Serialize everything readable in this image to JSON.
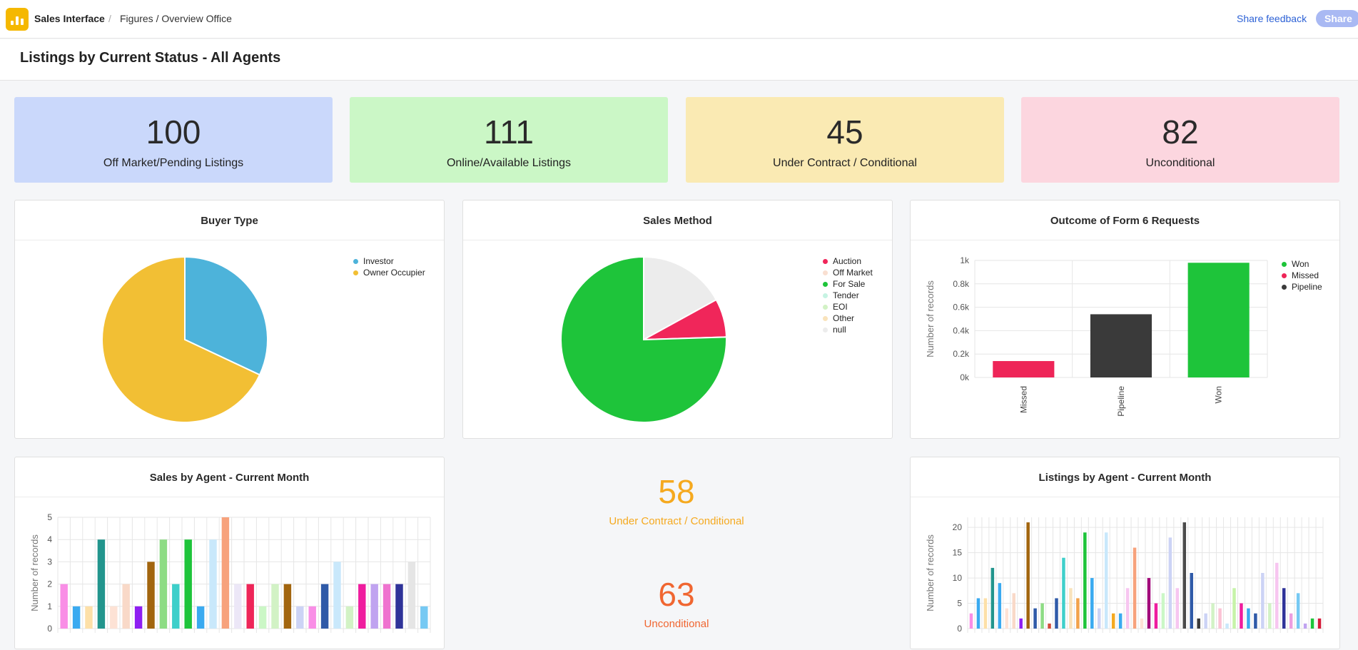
{
  "header": {
    "app_name": "Sales Interface",
    "separator": "/",
    "breadcrumb": "Figures / Overview Office",
    "feedback_label": "Share feedback",
    "share_label": "Share",
    "logo_icon": "bar-chart-icon",
    "brand_color": "#f5b800"
  },
  "page": {
    "title": "Listings by Current Status - All Agents"
  },
  "kpis": [
    {
      "value": "100",
      "label": "Off Market/Pending Listings",
      "color": "#cad8fb"
    },
    {
      "value": "111",
      "label": "Online/Available Listings",
      "color": "#cbf7c6"
    },
    {
      "value": "45",
      "label": "Under Contract / Conditional",
      "color": "#faeab3"
    },
    {
      "value": "82",
      "label": "Unconditional",
      "color": "#fcd6df"
    }
  ],
  "buyer_type": {
    "title": "Buyer Type",
    "legend": [
      {
        "label": "Investor",
        "color": "#4db3da"
      },
      {
        "label": "Owner Occupier",
        "color": "#f2bf34"
      }
    ]
  },
  "sales_method": {
    "title": "Sales Method",
    "legend": [
      {
        "label": "Auction",
        "color": "#f0265a"
      },
      {
        "label": "Off Market",
        "color": "#f9dfd1"
      },
      {
        "label": "For Sale",
        "color": "#1ec43a"
      },
      {
        "label": "Tender",
        "color": "#c6f3e3"
      },
      {
        "label": "EOI",
        "color": "#d2f2c5"
      },
      {
        "label": "Other",
        "color": "#f9e3bb"
      },
      {
        "label": "null",
        "color": "#ececec"
      }
    ]
  },
  "form6": {
    "title": "Outcome of Form 6 Requests",
    "ylabel": "Number of records",
    "legend": [
      {
        "label": "Won",
        "color": "#1ec43a"
      },
      {
        "label": "Missed",
        "color": "#ee2558"
      },
      {
        "label": "Pipeline",
        "color": "#3a3a3a"
      }
    ]
  },
  "sales_by_agent": {
    "title": "Sales by Agent - Current Month",
    "ylabel": "Number of records"
  },
  "listings_by_agent": {
    "title": "Listings by Agent - Current Month",
    "ylabel": "Number of records"
  },
  "stats": [
    {
      "value": "58",
      "label": "Under Contract / Conditional",
      "color": "#f5a91f"
    },
    {
      "value": "63",
      "label": "Unconditional",
      "color": "#f06631"
    }
  ],
  "chart_data": [
    {
      "type": "pie",
      "title": "Buyer Type",
      "labels": [
        "Investor",
        "Owner Occupier"
      ],
      "values": [
        32,
        68
      ],
      "colors": [
        "#4db3da",
        "#f2bf34"
      ]
    },
    {
      "type": "pie",
      "title": "Sales Method",
      "labels": [
        "Auction",
        "Off Market",
        "For Sale",
        "Tender",
        "EOI",
        "Other",
        "null"
      ],
      "values": [
        7.5,
        0,
        75.5,
        0,
        0,
        0,
        17
      ],
      "colors": [
        "#f0265a",
        "#f9dfd1",
        "#1ec43a",
        "#c6f3e3",
        "#d2f2c5",
        "#f9e3bb",
        "#ececec"
      ],
      "order": [
        "null",
        "Auction",
        "For Sale"
      ]
    },
    {
      "type": "bar",
      "title": "Outcome of Form 6 Requests",
      "categories": [
        "Missed",
        "Pipeline",
        "Won"
      ],
      "values": [
        140,
        540,
        980
      ],
      "colors": [
        "#ee2558",
        "#3a3a3a",
        "#1ec43a"
      ],
      "ylabel": "Number of records",
      "ylim": [
        0,
        1000
      ],
      "yticks": [
        "0k",
        "0.2k",
        "0.4k",
        "0.6k",
        "0.8k",
        "1k"
      ],
      "grid": true,
      "legend": "right"
    },
    {
      "type": "bar",
      "title": "Sales by Agent - Current Month",
      "values": [
        2,
        1,
        1,
        4,
        1,
        2,
        1,
        3,
        4,
        2,
        4,
        1,
        4,
        5,
        2,
        2,
        1,
        2,
        2,
        1,
        1,
        2,
        3,
        1,
        2,
        2,
        2,
        2,
        3,
        1
      ],
      "colors": [
        "#f98ee6",
        "#3aaaf0",
        "#fde0a8",
        "#22958d",
        "#fde2d5",
        "#f9d9c8",
        "#8e1ef2",
        "#a2650e",
        "#8ddc84",
        "#3ecfca",
        "#1ec43a",
        "#3aaaf0",
        "#c9e8fb",
        "#f7a27c",
        "#ece7f7",
        "#ee2558",
        "#cbf7c6",
        "#d2f2c5",
        "#a2650e",
        "#ccd3f5",
        "#f98ee6",
        "#2f5aa8",
        "#c9e8fb",
        "#d2f2c5",
        "#ef1c9e",
        "#c0a3f0",
        "#ef73cf",
        "#2f3399",
        "#e5e5e5",
        "#76c9f3"
      ],
      "ylabel": "Number of records",
      "ylim": [
        0,
        5
      ],
      "yticks": [
        "0",
        "1",
        "2",
        "3",
        "4",
        "5"
      ],
      "grid": true
    },
    {
      "type": "bar",
      "title": "Listings by Agent - Current Month",
      "values": [
        3,
        6,
        6,
        12,
        9,
        4,
        7,
        2,
        21,
        4,
        5,
        1,
        6,
        14,
        8,
        6,
        19,
        10,
        4,
        19,
        3,
        3,
        8,
        16,
        2,
        10,
        5,
        7,
        18,
        8,
        21,
        11,
        2,
        3,
        5,
        4,
        1,
        8,
        5,
        4,
        3,
        11,
        5,
        13,
        8,
        3,
        7,
        1,
        2,
        2
      ],
      "colors": [
        "#f98ee6",
        "#3aaaf0",
        "#fde0a8",
        "#22958d",
        "#3aaaf0",
        "#fde2d5",
        "#f9d9c8",
        "#8e1ef2",
        "#a2650e",
        "#2f5aa8",
        "#8ddc84",
        "#d24b3a",
        "#2f5aa8",
        "#3ecfca",
        "#f9e3bb",
        "#f2a24b",
        "#1ec43a",
        "#3aaaf0",
        "#ccd3f5",
        "#c9e8fb",
        "#f5a91f",
        "#3aaaf0",
        "#f7c6f0",
        "#f7a27c",
        "#fde2d5",
        "#a20a7a",
        "#ef1c9e",
        "#cbf7c6",
        "#ccd3f5",
        "#f7c6f0",
        "#4a4a4a",
        "#2f5aa8",
        "#3a3a3a",
        "#ccd3f5",
        "#d2f2c5",
        "#fbc2d4",
        "#c9e8fb",
        "#c6f3a8",
        "#ef1c9e",
        "#3aaaf0",
        "#2f5aa8",
        "#ccd3f5",
        "#d2f2c5",
        "#f7c6f0",
        "#2f3399",
        "#ec9ee0",
        "#76c9f3",
        "#c0a3f0",
        "#1ec43a",
        "#d41c3a"
      ],
      "ylabel": "Number of records",
      "ylim": [
        0,
        22
      ],
      "yticks": [
        "0",
        "5",
        "10",
        "15",
        "20"
      ],
      "grid": true
    }
  ]
}
